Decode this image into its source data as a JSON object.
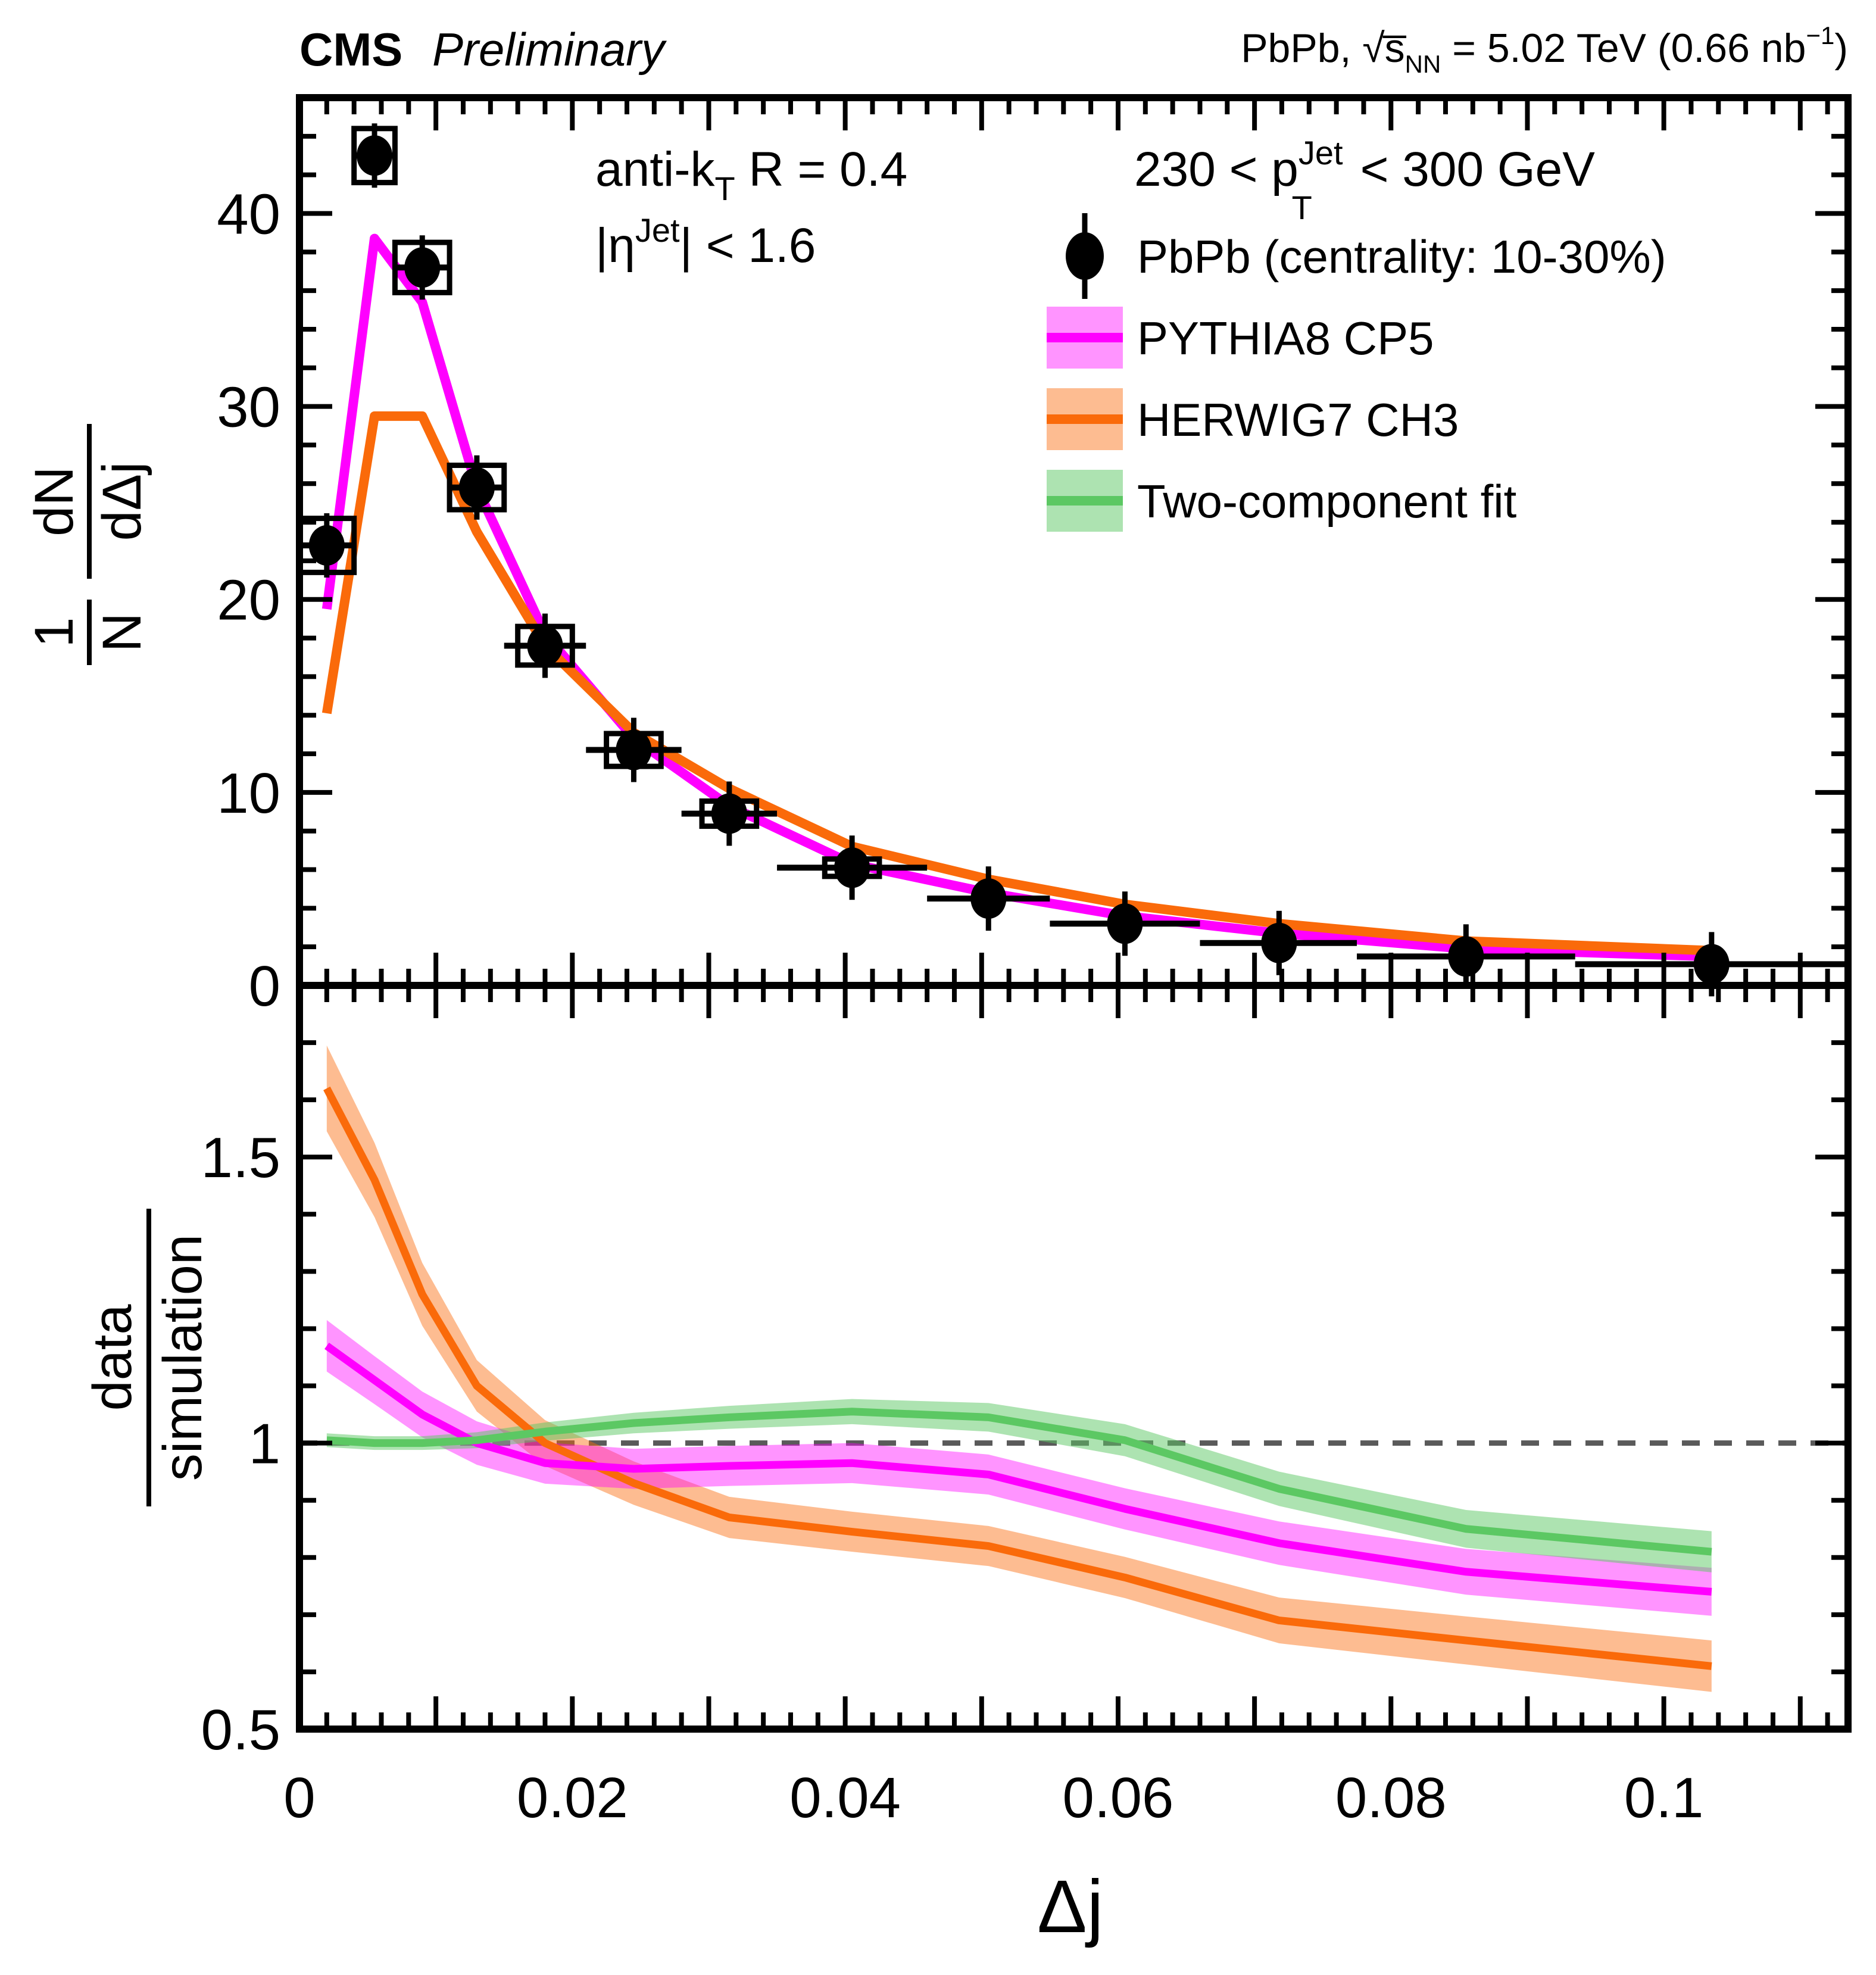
{
  "header": {
    "experiment": "CMS",
    "status": "Preliminary",
    "right_parts": {
      "prefix": "PbPb, ",
      "sqrt_s": "√s̅",
      "sqrt_sub": "NN",
      "energy": " = 5.02 TeV (0.66 nb",
      "lumi_sup": "−1",
      "close": ")"
    }
  },
  "annotations": {
    "antikt": {
      "pre": "anti-k",
      "sub": "T",
      "post": " R = 0.4"
    },
    "eta": {
      "pre": "|η",
      "sup": "Jet",
      "post": "| < 1.6"
    },
    "pt": {
      "pre": "230 < p",
      "sup": "Jet",
      "sub": "T",
      "post": " < 300 GeV"
    }
  },
  "legend": [
    {
      "type": "marker",
      "label": "PbPb (centrality: 10-30%)"
    },
    {
      "type": "band",
      "series": "pythia",
      "label": "PYTHIA8 CP5"
    },
    {
      "type": "band",
      "series": "herwig",
      "label": "HERWIG7 CH3"
    },
    {
      "type": "band",
      "series": "fit",
      "label": "Two-component fit"
    }
  ],
  "colors": {
    "pythia_line": "#FF00FF",
    "pythia_band": "rgba(255,0,255,0.42)",
    "herwig_line": "#FA6A0A",
    "herwig_band": "rgba(250,106,10,0.45)",
    "fit_line": "#5CC863",
    "fit_band": "rgba(92,200,99,0.5)",
    "marker": "#000000",
    "dashed": "#5A5A5A"
  },
  "axes": {
    "xlabel": "Δj",
    "xlim": [
      0,
      0.1135
    ],
    "xticks": [
      0,
      0.02,
      0.04,
      0.06,
      0.08,
      0.1
    ],
    "top_ylim": [
      0,
      46
    ],
    "top_yticks": [
      0,
      10,
      20,
      30,
      40
    ],
    "top_ylabel": {
      "num1": "1",
      "den1": "N",
      "num2": "dN",
      "den2": "dΔj"
    },
    "ratio_ylim": [
      0.5,
      1.8
    ],
    "ratio_yticks": [
      0.5,
      1,
      1.5
    ],
    "ratio_ylabel": {
      "num": "data",
      "den": "simulation"
    },
    "dashed_y": 1
  },
  "chart_data": [
    {
      "type": "scatter",
      "panel": "top",
      "title": "1/N dN/dΔj vs Δj",
      "bin_edges": [
        0,
        0.004,
        0.007,
        0.011,
        0.015,
        0.021,
        0.028,
        0.035,
        0.046,
        0.055,
        0.066,
        0.0775,
        0.0935,
        0.1135
      ],
      "x": [
        0.002,
        0.0055,
        0.009,
        0.013,
        0.018,
        0.0245,
        0.0315,
        0.0405,
        0.0505,
        0.0605,
        0.0718,
        0.0855,
        0.1035
      ],
      "data_points": {
        "name": "PbPb (centrality: 10-30%)",
        "y": [
          22.8,
          43.0,
          37.2,
          25.8,
          17.6,
          12.2,
          8.9,
          6.1,
          4.5,
          3.2,
          2.2,
          1.5,
          1.1
        ],
        "sys_box_half_height": [
          1.4,
          1.4,
          1.3,
          1.15,
          1.0,
          0.85,
          0.65,
          0.45,
          0,
          0,
          0,
          0,
          0
        ],
        "sys_box_half_width": 0.002
      },
      "series": [
        {
          "name": "PYTHIA8 CP5",
          "y": [
            19.5,
            38.7,
            35.4,
            25.8,
            18.2,
            12.8,
            9.3,
            6.3,
            4.8,
            3.6,
            2.7,
            1.9,
            1.5
          ]
        },
        {
          "name": "HERWIG7 CH3",
          "y": [
            14.1,
            29.5,
            29.5,
            23.5,
            17.6,
            13.1,
            10.2,
            7.2,
            5.5,
            4.2,
            3.2,
            2.3,
            1.8
          ]
        }
      ]
    },
    {
      "type": "line",
      "panel": "ratio",
      "title": "data/simulation vs Δj",
      "x": [
        0.002,
        0.0055,
        0.009,
        0.013,
        0.018,
        0.0245,
        0.0315,
        0.0405,
        0.0505,
        0.0605,
        0.0718,
        0.0855,
        0.1035
      ],
      "series": [
        {
          "name": "HERWIG7 CH3",
          "y": [
            1.62,
            1.46,
            1.26,
            1.1,
            1.0,
            0.93,
            0.87,
            0.845,
            0.82,
            0.765,
            0.69,
            0.655,
            0.61
          ],
          "band": [
            0.075,
            0.065,
            0.055,
            0.045,
            0.04,
            0.038,
            0.036,
            0.035,
            0.035,
            0.036,
            0.04,
            0.042,
            0.045
          ]
        },
        {
          "name": "PYTHIA8 CP5",
          "y": [
            1.17,
            1.11,
            1.05,
            1.0,
            0.965,
            0.955,
            0.96,
            0.965,
            0.945,
            0.885,
            0.825,
            0.775,
            0.74
          ],
          "band": [
            0.045,
            0.042,
            0.04,
            0.038,
            0.036,
            0.035,
            0.035,
            0.035,
            0.035,
            0.036,
            0.038,
            0.04,
            0.042
          ]
        },
        {
          "name": "Two-component fit",
          "y": [
            1.005,
            1.0,
            1.0,
            1.005,
            1.02,
            1.035,
            1.045,
            1.055,
            1.045,
            1.005,
            0.92,
            0.85,
            0.81
          ],
          "band": [
            0.012,
            0.012,
            0.012,
            0.014,
            0.016,
            0.018,
            0.02,
            0.022,
            0.025,
            0.028,
            0.03,
            0.033,
            0.036
          ]
        }
      ]
    }
  ]
}
